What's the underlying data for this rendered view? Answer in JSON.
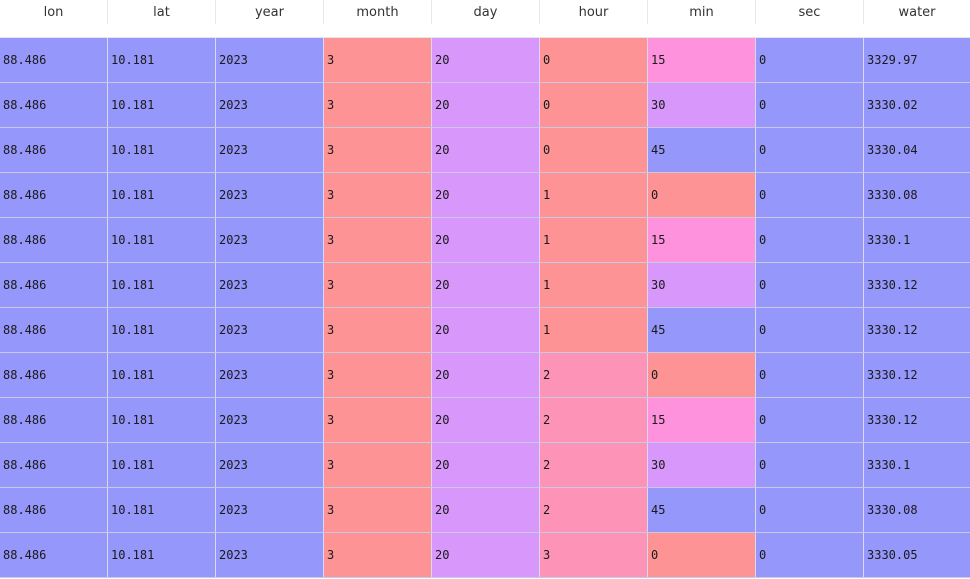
{
  "colors": {
    "blue": "#9597fb",
    "salmon": "#fe9396",
    "violet": "#d797fb",
    "pink": "#fe92dd",
    "rose": "#fe93b8",
    "header_bg": "#ffffff"
  },
  "columns": [
    "lon",
    "lat",
    "year",
    "month",
    "day",
    "hour",
    "min",
    "sec",
    "water"
  ],
  "rows": [
    {
      "cells": [
        "88.486",
        "10.181",
        "2023",
        "3",
        "20",
        "0",
        "15",
        "0",
        "3329.97"
      ],
      "colors": [
        "blue",
        "blue",
        "blue",
        "salmon",
        "violet",
        "salmon",
        "pink",
        "blue",
        "blue"
      ]
    },
    {
      "cells": [
        "88.486",
        "10.181",
        "2023",
        "3",
        "20",
        "0",
        "30",
        "0",
        "3330.02"
      ],
      "colors": [
        "blue",
        "blue",
        "blue",
        "salmon",
        "violet",
        "salmon",
        "violet",
        "blue",
        "blue"
      ]
    },
    {
      "cells": [
        "88.486",
        "10.181",
        "2023",
        "3",
        "20",
        "0",
        "45",
        "0",
        "3330.04"
      ],
      "colors": [
        "blue",
        "blue",
        "blue",
        "salmon",
        "violet",
        "salmon",
        "blue",
        "blue",
        "blue"
      ]
    },
    {
      "cells": [
        "88.486",
        "10.181",
        "2023",
        "3",
        "20",
        "1",
        "0",
        "0",
        "3330.08"
      ],
      "colors": [
        "blue",
        "blue",
        "blue",
        "salmon",
        "violet",
        "salmon",
        "salmon",
        "blue",
        "blue"
      ]
    },
    {
      "cells": [
        "88.486",
        "10.181",
        "2023",
        "3",
        "20",
        "1",
        "15",
        "0",
        "3330.1"
      ],
      "colors": [
        "blue",
        "blue",
        "blue",
        "salmon",
        "violet",
        "salmon",
        "pink",
        "blue",
        "blue"
      ]
    },
    {
      "cells": [
        "88.486",
        "10.181",
        "2023",
        "3",
        "20",
        "1",
        "30",
        "0",
        "3330.12"
      ],
      "colors": [
        "blue",
        "blue",
        "blue",
        "salmon",
        "violet",
        "salmon",
        "violet",
        "blue",
        "blue"
      ]
    },
    {
      "cells": [
        "88.486",
        "10.181",
        "2023",
        "3",
        "20",
        "1",
        "45",
        "0",
        "3330.12"
      ],
      "colors": [
        "blue",
        "blue",
        "blue",
        "salmon",
        "violet",
        "salmon",
        "blue",
        "blue",
        "blue"
      ]
    },
    {
      "cells": [
        "88.486",
        "10.181",
        "2023",
        "3",
        "20",
        "2",
        "0",
        "0",
        "3330.12"
      ],
      "colors": [
        "blue",
        "blue",
        "blue",
        "salmon",
        "violet",
        "rose",
        "salmon",
        "blue",
        "blue"
      ]
    },
    {
      "cells": [
        "88.486",
        "10.181",
        "2023",
        "3",
        "20",
        "2",
        "15",
        "0",
        "3330.12"
      ],
      "colors": [
        "blue",
        "blue",
        "blue",
        "salmon",
        "violet",
        "rose",
        "pink",
        "blue",
        "blue"
      ]
    },
    {
      "cells": [
        "88.486",
        "10.181",
        "2023",
        "3",
        "20",
        "2",
        "30",
        "0",
        "3330.1"
      ],
      "colors": [
        "blue",
        "blue",
        "blue",
        "salmon",
        "violet",
        "rose",
        "violet",
        "blue",
        "blue"
      ]
    },
    {
      "cells": [
        "88.486",
        "10.181",
        "2023",
        "3",
        "20",
        "2",
        "45",
        "0",
        "3330.08"
      ],
      "colors": [
        "blue",
        "blue",
        "blue",
        "salmon",
        "violet",
        "rose",
        "blue",
        "blue",
        "blue"
      ]
    },
    {
      "cells": [
        "88.486",
        "10.181",
        "2023",
        "3",
        "20",
        "3",
        "0",
        "0",
        "3330.05"
      ],
      "colors": [
        "blue",
        "blue",
        "blue",
        "salmon",
        "violet",
        "rose",
        "salmon",
        "blue",
        "blue"
      ]
    }
  ]
}
